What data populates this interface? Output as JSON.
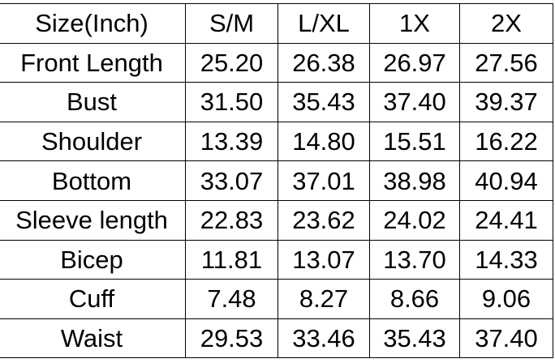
{
  "size_chart": {
    "headers": [
      "Size(Inch)",
      "S/M",
      "L/XL",
      "1X",
      "2X"
    ],
    "rows": [
      [
        "Front Length",
        "25.20",
        "26.38",
        "26.97",
        "27.56"
      ],
      [
        "Bust",
        "31.50",
        "35.43",
        "37.40",
        "39.37"
      ],
      [
        "Shoulder",
        "13.39",
        "14.80",
        "15.51",
        "16.22"
      ],
      [
        "Bottom",
        "33.07",
        "37.01",
        "38.98",
        "40.94"
      ],
      [
        "Sleeve length",
        "22.83",
        "23.62",
        "24.02",
        "24.41"
      ],
      [
        "Bicep",
        "11.81",
        "13.07",
        "13.70",
        "14.33"
      ],
      [
        "Cuff",
        "7.48",
        "8.27",
        "8.66",
        "9.06"
      ],
      [
        "Waist",
        "29.53",
        "33.46",
        "35.43",
        "37.40"
      ]
    ]
  }
}
